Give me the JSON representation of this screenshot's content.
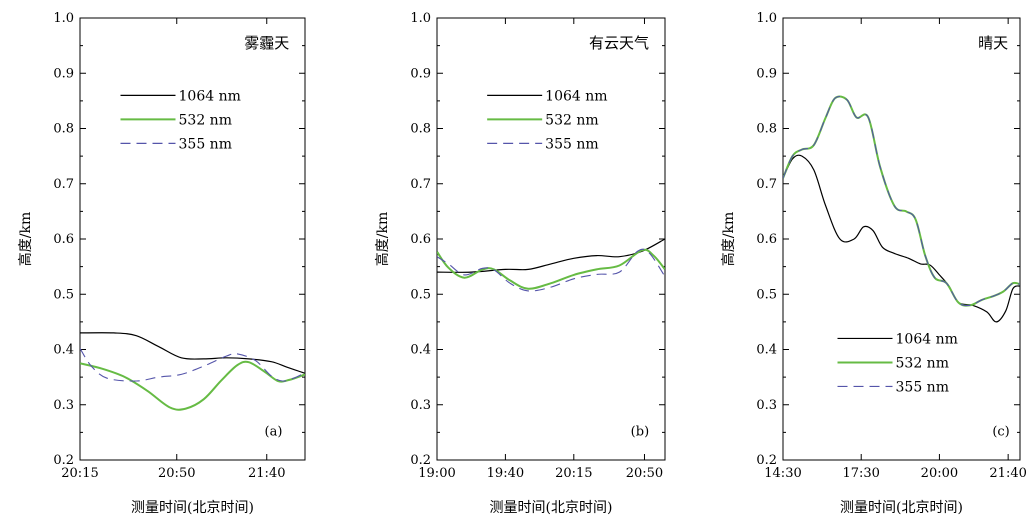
{
  "chart_data": [
    {
      "type": "line",
      "title": "雾霾天",
      "panel_label": "(a)",
      "xlabel": "测量时间(北京时间)",
      "ylabel": "高度/km",
      "ylim": [
        0.2,
        1.0
      ],
      "yticks": [
        "0.2",
        "0.3",
        "0.4",
        "0.5",
        "0.6",
        "0.7",
        "0.8",
        "0.9",
        "1.0"
      ],
      "xticks": [
        "20:15",
        "20:50",
        "21:40"
      ],
      "legend_position": "upper-middle",
      "series": [
        {
          "name": "1064 nm",
          "color": "#000000",
          "style": "solid",
          "values": [
            [
              0,
              0.43
            ],
            [
              0.15,
              0.43
            ],
            [
              0.25,
              0.425
            ],
            [
              0.35,
              0.405
            ],
            [
              0.45,
              0.385
            ],
            [
              0.55,
              0.383
            ],
            [
              0.65,
              0.385
            ],
            [
              0.75,
              0.383
            ],
            [
              0.85,
              0.378
            ],
            [
              0.92,
              0.368
            ],
            [
              1.0,
              0.357
            ]
          ]
        },
        {
          "name": "532 nm",
          "color": "#66bb44",
          "style": "solid",
          "values": [
            [
              0,
              0.375
            ],
            [
              0.1,
              0.365
            ],
            [
              0.2,
              0.35
            ],
            [
              0.3,
              0.325
            ],
            [
              0.4,
              0.295
            ],
            [
              0.47,
              0.293
            ],
            [
              0.55,
              0.31
            ],
            [
              0.63,
              0.345
            ],
            [
              0.7,
              0.372
            ],
            [
              0.75,
              0.377
            ],
            [
              0.82,
              0.36
            ],
            [
              0.88,
              0.343
            ],
            [
              0.93,
              0.345
            ],
            [
              1.0,
              0.355
            ]
          ]
        },
        {
          "name": "355 nm",
          "color": "#5555aa",
          "style": "dashed",
          "values": [
            [
              0,
              0.402
            ],
            [
              0.05,
              0.37
            ],
            [
              0.12,
              0.348
            ],
            [
              0.25,
              0.343
            ],
            [
              0.35,
              0.35
            ],
            [
              0.45,
              0.355
            ],
            [
              0.55,
              0.37
            ],
            [
              0.65,
              0.388
            ],
            [
              0.7,
              0.392
            ],
            [
              0.78,
              0.38
            ],
            [
              0.85,
              0.352
            ],
            [
              0.9,
              0.343
            ],
            [
              0.95,
              0.348
            ],
            [
              1.0,
              0.358
            ]
          ]
        }
      ]
    },
    {
      "type": "line",
      "title": "有云天气",
      "panel_label": "(b)",
      "xlabel": "测量时间(北京时间)",
      "ylabel": "高度/km",
      "ylim": [
        0.2,
        1.0
      ],
      "yticks": [
        "0.2",
        "0.3",
        "0.4",
        "0.5",
        "0.6",
        "0.7",
        "0.8",
        "0.9",
        "1.0"
      ],
      "xticks": [
        "19:00",
        "19:40",
        "20:15",
        "20:50"
      ],
      "legend_position": "upper-middle",
      "series": [
        {
          "name": "1064 nm",
          "color": "#000000",
          "style": "solid",
          "values": [
            [
              0,
              0.54
            ],
            [
              0.15,
              0.54
            ],
            [
              0.3,
              0.545
            ],
            [
              0.4,
              0.545
            ],
            [
              0.5,
              0.555
            ],
            [
              0.6,
              0.565
            ],
            [
              0.7,
              0.57
            ],
            [
              0.8,
              0.568
            ],
            [
              0.9,
              0.578
            ],
            [
              1.0,
              0.6
            ]
          ]
        },
        {
          "name": "532 nm",
          "color": "#66bb44",
          "style": "solid",
          "values": [
            [
              0,
              0.577
            ],
            [
              0.05,
              0.548
            ],
            [
              0.12,
              0.53
            ],
            [
              0.2,
              0.545
            ],
            [
              0.25,
              0.545
            ],
            [
              0.32,
              0.525
            ],
            [
              0.4,
              0.51
            ],
            [
              0.5,
              0.52
            ],
            [
              0.6,
              0.535
            ],
            [
              0.7,
              0.545
            ],
            [
              0.8,
              0.552
            ],
            [
              0.9,
              0.58
            ],
            [
              0.95,
              0.57
            ],
            [
              1.0,
              0.545
            ]
          ]
        },
        {
          "name": "355 nm",
          "color": "#5555aa",
          "style": "dashed",
          "values": [
            [
              0,
              0.568
            ],
            [
              0.05,
              0.555
            ],
            [
              0.12,
              0.535
            ],
            [
              0.2,
              0.547
            ],
            [
              0.25,
              0.544
            ],
            [
              0.32,
              0.52
            ],
            [
              0.4,
              0.506
            ],
            [
              0.5,
              0.513
            ],
            [
              0.6,
              0.528
            ],
            [
              0.7,
              0.536
            ],
            [
              0.8,
              0.54
            ],
            [
              0.88,
              0.578
            ],
            [
              0.93,
              0.575
            ],
            [
              1.0,
              0.532
            ]
          ]
        }
      ]
    },
    {
      "type": "line",
      "title": "晴天",
      "panel_label": "(c)",
      "xlabel": "测量时间(北京时间)",
      "ylabel": "高度/km",
      "ylim": [
        0.2,
        1.0
      ],
      "yticks": [
        "0.2",
        "0.3",
        "0.4",
        "0.5",
        "0.6",
        "0.7",
        "0.8",
        "0.9",
        "1.0"
      ],
      "xticks": [
        "14:30",
        "17:30",
        "20:00",
        "21:40"
      ],
      "legend_position": "lower-middle",
      "series": [
        {
          "name": "1064 nm",
          "color": "#000000",
          "style": "solid",
          "values": [
            [
              0,
              0.71
            ],
            [
              0.04,
              0.745
            ],
            [
              0.08,
              0.75
            ],
            [
              0.13,
              0.725
            ],
            [
              0.18,
              0.66
            ],
            [
              0.24,
              0.6
            ],
            [
              0.3,
              0.6
            ],
            [
              0.34,
              0.622
            ],
            [
              0.38,
              0.615
            ],
            [
              0.42,
              0.585
            ],
            [
              0.47,
              0.574
            ],
            [
              0.53,
              0.565
            ],
            [
              0.58,
              0.555
            ],
            [
              0.62,
              0.553
            ],
            [
              0.66,
              0.535
            ],
            [
              0.7,
              0.515
            ],
            [
              0.74,
              0.485
            ],
            [
              0.8,
              0.48
            ],
            [
              0.86,
              0.468
            ],
            [
              0.9,
              0.45
            ],
            [
              0.94,
              0.47
            ],
            [
              0.97,
              0.51
            ],
            [
              1.0,
              0.515
            ]
          ]
        },
        {
          "name": "532 nm",
          "color": "#66bb44",
          "style": "solid",
          "values": [
            [
              0,
              0.71
            ],
            [
              0.04,
              0.75
            ],
            [
              0.08,
              0.762
            ],
            [
              0.13,
              0.77
            ],
            [
              0.18,
              0.82
            ],
            [
              0.22,
              0.855
            ],
            [
              0.27,
              0.852
            ],
            [
              0.31,
              0.82
            ],
            [
              0.36,
              0.82
            ],
            [
              0.41,
              0.73
            ],
            [
              0.47,
              0.66
            ],
            [
              0.52,
              0.65
            ],
            [
              0.56,
              0.635
            ],
            [
              0.6,
              0.57
            ],
            [
              0.64,
              0.53
            ],
            [
              0.69,
              0.52
            ],
            [
              0.74,
              0.485
            ],
            [
              0.79,
              0.48
            ],
            [
              0.84,
              0.49
            ],
            [
              0.89,
              0.497
            ],
            [
              0.93,
              0.505
            ],
            [
              0.97,
              0.52
            ],
            [
              1.0,
              0.518
            ]
          ]
        },
        {
          "name": "355 nm",
          "color": "#5555aa",
          "style": "dashed",
          "values": [
            [
              0,
              0.71
            ],
            [
              0.04,
              0.75
            ],
            [
              0.08,
              0.762
            ],
            [
              0.13,
              0.77
            ],
            [
              0.18,
              0.82
            ],
            [
              0.22,
              0.855
            ],
            [
              0.27,
              0.852
            ],
            [
              0.31,
              0.82
            ],
            [
              0.36,
              0.82
            ],
            [
              0.41,
              0.73
            ],
            [
              0.47,
              0.66
            ],
            [
              0.52,
              0.65
            ],
            [
              0.56,
              0.635
            ],
            [
              0.6,
              0.57
            ],
            [
              0.64,
              0.53
            ],
            [
              0.69,
              0.52
            ],
            [
              0.74,
              0.485
            ],
            [
              0.79,
              0.48
            ],
            [
              0.84,
              0.49
            ],
            [
              0.89,
              0.497
            ],
            [
              0.93,
              0.505
            ],
            [
              0.97,
              0.52
            ],
            [
              1.0,
              0.518
            ]
          ]
        }
      ]
    }
  ]
}
